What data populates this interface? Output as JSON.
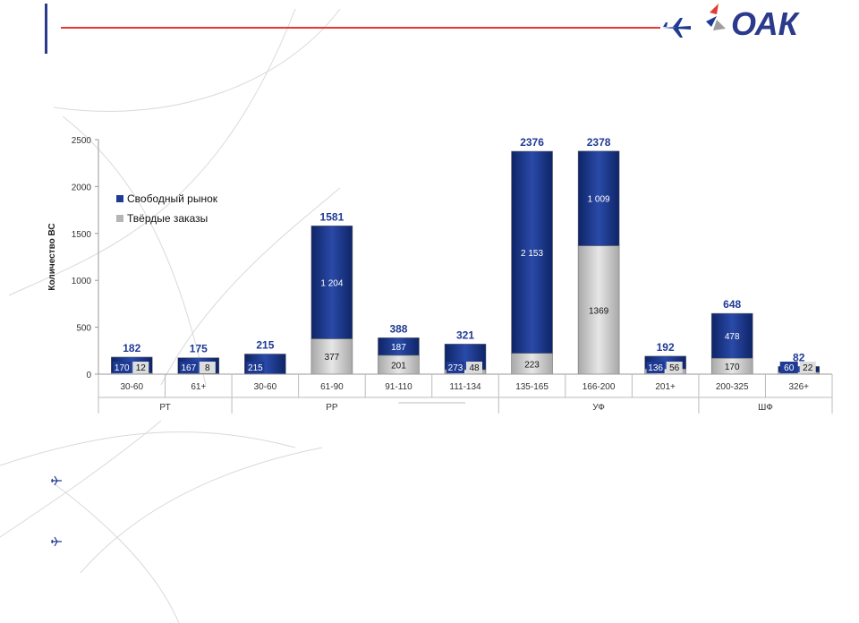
{
  "header": {
    "logo_text": "ОАК"
  },
  "chart_data": {
    "type": "bar",
    "stacked": true,
    "ylabel": "Количество ВС",
    "ylim": [
      0,
      2500
    ],
    "yticks": [
      0,
      500,
      1000,
      1500,
      2000,
      2500
    ],
    "groups": [
      {
        "label": "РТ",
        "span": 2
      },
      {
        "label": "РР",
        "span": 3
      },
      {
        "label": "",
        "span": 1
      },
      {
        "label": "УФ",
        "span": 3
      },
      {
        "label": "ШФ",
        "span": 2
      }
    ],
    "categories": [
      "30-60",
      "61+",
      "30-60",
      "61-90",
      "91-110",
      "111-134",
      "135-165",
      "166-200",
      "201+",
      "200-325",
      "326+"
    ],
    "series": [
      {
        "name": "Твёрдые заказы",
        "color": "#c8c8c8",
        "values": [
          12,
          8,
          0,
          377,
          201,
          48,
          223,
          1369,
          56,
          170,
          22
        ],
        "labels": [
          "12",
          "8",
          "",
          "377",
          "201",
          "48",
          "223",
          "1369",
          "56",
          "170",
          "22"
        ]
      },
      {
        "name": "Свободный рынок",
        "color": "#1f3a93",
        "values": [
          170,
          167,
          215,
          1204,
          187,
          273,
          2153,
          1009,
          136,
          478,
          60
        ],
        "labels": [
          "170",
          "167",
          "215",
          "1 204",
          "187",
          "273",
          "2 153",
          "1 009",
          "136",
          "478",
          "60"
        ]
      }
    ],
    "totals": [
      "182",
      "175",
      "215",
      "1581",
      "388",
      "321",
      "2376",
      "2378",
      "192",
      "648",
      "82"
    ],
    "legend": {
      "position": "top-left",
      "items": [
        "Свободный рынок",
        "Твёрдые заказы"
      ]
    },
    "grid": false
  }
}
